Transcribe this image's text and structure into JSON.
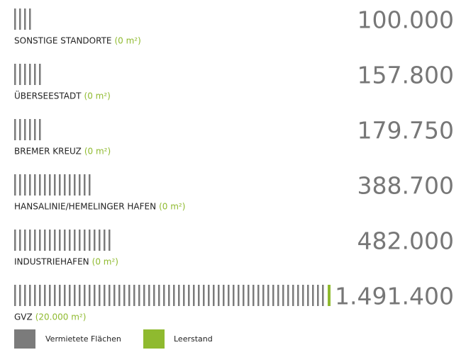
{
  "rows": [
    {
      "name": "SONSTIGE STANDORTE",
      "vacancy": "(0 m²)",
      "total": "100.000",
      "rented_ticks": 4,
      "vacant_ticks": 0
    },
    {
      "name": "ÜBERSEESTADT",
      "vacancy": "(0 m²)",
      "total": "157.800",
      "rented_ticks": 6,
      "vacant_ticks": 0
    },
    {
      "name": "BREMER KREUZ",
      "vacancy": "(0 m²)",
      "total": "179.750",
      "rented_ticks": 6,
      "vacant_ticks": 0
    },
    {
      "name": "HANSALINIE/HEMELINGER HAFEN",
      "vacancy": "(0 m²)",
      "total": "388.700",
      "rented_ticks": 16,
      "vacant_ticks": 0
    },
    {
      "name": "INDUSTRIEHAFEN",
      "vacancy": "(0 m²)",
      "total": "482.000",
      "rented_ticks": 20,
      "vacant_ticks": 0
    },
    {
      "name": "GVZ",
      "vacancy": "(20.000 m²)",
      "total": "1.491.400",
      "rented_ticks": 63,
      "vacant_ticks": 1
    }
  ],
  "colors": {
    "rented": "#7b7b7b",
    "vacant": "#8fba2f"
  },
  "legend": {
    "rented": "Vermietete Flächen",
    "vacant": "Leerstand"
  }
}
